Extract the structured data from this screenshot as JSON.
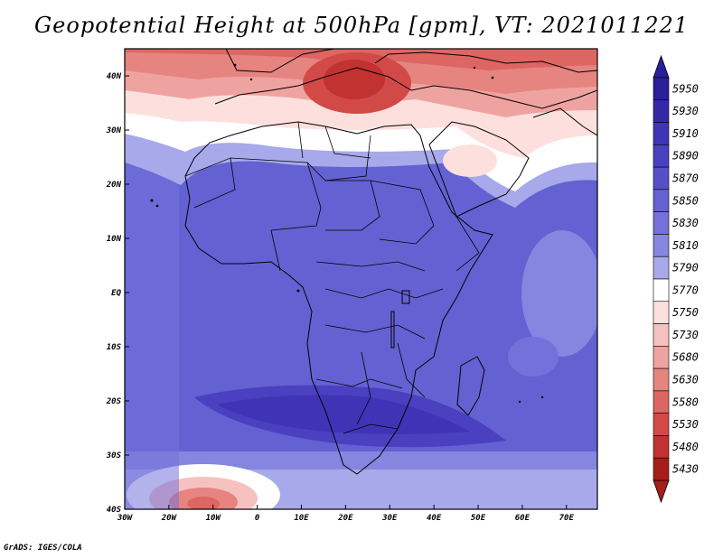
{
  "title": "Geopotential Height at 500hPa [gpm], VT: 2021011221",
  "credit": "GrADS: IGES/COLA",
  "map": {
    "variable": "Geopotential Height at 500hPa",
    "units": "gpm",
    "valid_time": "2021011221",
    "lon_range": [
      -30,
      77
    ],
    "lat_range": [
      -40,
      45
    ],
    "lon_ticks": [
      {
        "value": -30,
        "label": "30W"
      },
      {
        "value": -20,
        "label": "20W"
      },
      {
        "value": -10,
        "label": "10W"
      },
      {
        "value": 0,
        "label": "0"
      },
      {
        "value": 10,
        "label": "10E"
      },
      {
        "value": 20,
        "label": "20E"
      },
      {
        "value": 30,
        "label": "30E"
      },
      {
        "value": 40,
        "label": "40E"
      },
      {
        "value": 50,
        "label": "50E"
      },
      {
        "value": 60,
        "label": "60E"
      },
      {
        "value": 70,
        "label": "70E"
      }
    ],
    "lat_ticks": [
      {
        "value": 40,
        "label": "40N"
      },
      {
        "value": 30,
        "label": "30N"
      },
      {
        "value": 20,
        "label": "20N"
      },
      {
        "value": 10,
        "label": "10N"
      },
      {
        "value": 0,
        "label": "EQ"
      },
      {
        "value": -10,
        "label": "10S"
      },
      {
        "value": -20,
        "label": "20S"
      },
      {
        "value": -30,
        "label": "30S"
      },
      {
        "value": -40,
        "label": "40S"
      }
    ]
  },
  "colorbar": {
    "levels": [
      {
        "label": "5950",
        "color": "#2a1f9a"
      },
      {
        "label": "5930",
        "color": "#3528a8"
      },
      {
        "label": "5910",
        "color": "#3f34b5"
      },
      {
        "label": "5890",
        "color": "#4a40c0"
      },
      {
        "label": "5870",
        "color": "#5550c8"
      },
      {
        "label": "5850",
        "color": "#6462d2"
      },
      {
        "label": "5830",
        "color": "#7472da"
      },
      {
        "label": "5810",
        "color": "#8586e0"
      },
      {
        "label": "5790",
        "color": "#a7a9ea"
      },
      {
        "label": "5770",
        "color": "#ffffff"
      },
      {
        "label": "5750",
        "color": "#fde0de"
      },
      {
        "label": "5730",
        "color": "#f6c2bf"
      },
      {
        "label": "5680",
        "color": "#efa3a0"
      },
      {
        "label": "5630",
        "color": "#e68480"
      },
      {
        "label": "5580",
        "color": "#dd6662"
      },
      {
        "label": "5530",
        "color": "#d24a47"
      },
      {
        "label": "5480",
        "color": "#c13230"
      },
      {
        "label": "5430",
        "color": "#a61d1c"
      }
    ],
    "top_triangle_color": "#2a1f9a",
    "bottom_triangle_color": "#a61d1c"
  }
}
